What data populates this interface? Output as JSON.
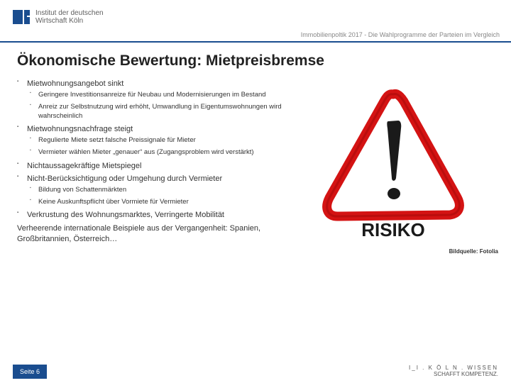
{
  "header": {
    "org_line1": "Institut der deutschen",
    "org_line2": "Wirtschaft Köln",
    "subtitle": "Immobilienpoltik 2017 - Die Wahlprogramme der Parteien im Vergleich"
  },
  "title": "Ökonomische Bewertung: Mietpreisbremse",
  "bullets": [
    {
      "text": "Mietwohnungsangebot sinkt",
      "sub": [
        "Geringere Investitionsanreize für Neubau und Modernisierungen im Bestand",
        "Anreiz zur Selbstnutzung wird erhöht, Umwandlung in Eigentumswohnungen wird wahrscheinlich"
      ]
    },
    {
      "text": "Mietwohnungsnachfrage steigt",
      "sub": [
        "Regulierte Miete setzt falsche Preissignale für Mieter",
        "Vermieter wählen Mieter „genauer“ aus (Zugangsproblem wird verstärkt)"
      ]
    },
    {
      "text": "Nichtaussagekräftige Mietspiegel",
      "sub": []
    },
    {
      "text": "Nicht-Berücksichtigung oder Umgehung durch Vermieter",
      "sub": [
        "Bildung von Schattenmärkten",
        "Keine Auskunftspflicht über Vormiete für Vermieter"
      ]
    },
    {
      "text": "Verkrustung des Wohnungsmarktes, Verringerte Mobilität",
      "sub": []
    }
  ],
  "closing": "Verheerende internationale Beispiele aus der Vergangenheit: Spanien, Großbritannien, Österreich…",
  "image": {
    "label": "RISIKO",
    "credit": "Bildquelle: Fotolia",
    "colors": {
      "triangle_stroke": "#d41313",
      "triangle_fill": "#ffffff",
      "text": "#1a1a1a"
    }
  },
  "footer": {
    "page_label": "Seite 6",
    "brand_line1": "I_I . K Ö L N . WISSEN",
    "brand_line2": "SCHAFFT KOMPETENZ."
  },
  "colors": {
    "accent": "#1a4d8f",
    "text": "#333333"
  }
}
